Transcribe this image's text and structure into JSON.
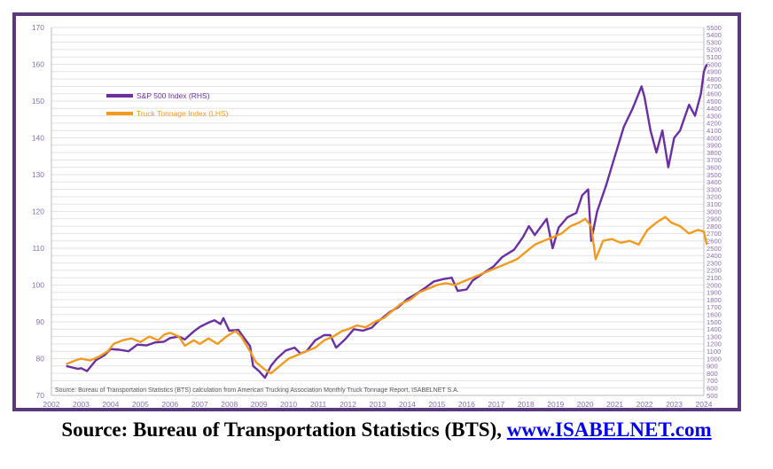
{
  "chart_data": {
    "type": "line",
    "x_ticks": [
      "2002",
      "2003",
      "2004",
      "2005",
      "2006",
      "2007",
      "2008",
      "2009",
      "2010",
      "2011",
      "2012",
      "2013",
      "2014",
      "2015",
      "2016",
      "2017",
      "2018",
      "2019",
      "2020",
      "2021",
      "2022",
      "2023",
      "2024"
    ],
    "y_left_ticks": [
      70,
      80,
      90,
      100,
      110,
      120,
      130,
      140,
      150,
      160,
      170
    ],
    "y_left_range": [
      70,
      170
    ],
    "y_right_range": [
      500,
      5500
    ],
    "y_right_step": 100,
    "x_range": [
      2002,
      2024
    ],
    "grid": true,
    "legend_position": "top-left",
    "note": "Source: Bureau of Transportation Statistics (BTS) calculation from American Trucking Association Monthly Truck Tonnage Report, ISABELNET S.A.",
    "series": [
      {
        "name": "S&P 500 Index (RHS)",
        "axis": "right",
        "color": "#6a2fa0",
        "points": [
          [
            2002.5,
            900
          ],
          [
            2002.7,
            880
          ],
          [
            2002.9,
            860
          ],
          [
            2003.0,
            870
          ],
          [
            2003.2,
            830
          ],
          [
            2003.5,
            980
          ],
          [
            2003.8,
            1050
          ],
          [
            2004.0,
            1130
          ],
          [
            2004.3,
            1120
          ],
          [
            2004.6,
            1100
          ],
          [
            2004.9,
            1190
          ],
          [
            2005.2,
            1180
          ],
          [
            2005.5,
            1220
          ],
          [
            2005.8,
            1230
          ],
          [
            2006.0,
            1280
          ],
          [
            2006.3,
            1300
          ],
          [
            2006.5,
            1260
          ],
          [
            2006.8,
            1370
          ],
          [
            2007.0,
            1430
          ],
          [
            2007.3,
            1490
          ],
          [
            2007.5,
            1520
          ],
          [
            2007.7,
            1470
          ],
          [
            2007.8,
            1550
          ],
          [
            2008.0,
            1380
          ],
          [
            2008.3,
            1390
          ],
          [
            2008.5,
            1280
          ],
          [
            2008.7,
            1170
          ],
          [
            2008.8,
            900
          ],
          [
            2009.0,
            830
          ],
          [
            2009.2,
            740
          ],
          [
            2009.4,
            900
          ],
          [
            2009.6,
            1000
          ],
          [
            2009.9,
            1110
          ],
          [
            2010.2,
            1150
          ],
          [
            2010.4,
            1070
          ],
          [
            2010.6,
            1100
          ],
          [
            2010.9,
            1250
          ],
          [
            2011.2,
            1320
          ],
          [
            2011.4,
            1320
          ],
          [
            2011.6,
            1150
          ],
          [
            2011.9,
            1260
          ],
          [
            2012.2,
            1400
          ],
          [
            2012.5,
            1380
          ],
          [
            2012.8,
            1420
          ],
          [
            2013.0,
            1500
          ],
          [
            2013.4,
            1630
          ],
          [
            2013.7,
            1700
          ],
          [
            2014.0,
            1810
          ],
          [
            2014.3,
            1880
          ],
          [
            2014.6,
            1960
          ],
          [
            2014.9,
            2050
          ],
          [
            2015.2,
            2080
          ],
          [
            2015.5,
            2100
          ],
          [
            2015.7,
            1920
          ],
          [
            2016.0,
            1940
          ],
          [
            2016.2,
            2060
          ],
          [
            2016.6,
            2170
          ],
          [
            2016.9,
            2250
          ],
          [
            2017.2,
            2380
          ],
          [
            2017.6,
            2480
          ],
          [
            2017.9,
            2650
          ],
          [
            2018.1,
            2800
          ],
          [
            2018.3,
            2680
          ],
          [
            2018.7,
            2900
          ],
          [
            2018.9,
            2500
          ],
          [
            2019.1,
            2780
          ],
          [
            2019.4,
            2920
          ],
          [
            2019.7,
            2980
          ],
          [
            2019.9,
            3220
          ],
          [
            2020.1,
            3300
          ],
          [
            2020.2,
            2600
          ],
          [
            2020.4,
            3000
          ],
          [
            2020.7,
            3350
          ],
          [
            2021.0,
            3750
          ],
          [
            2021.3,
            4150
          ],
          [
            2021.6,
            4400
          ],
          [
            2021.9,
            4700
          ],
          [
            2022.0,
            4550
          ],
          [
            2022.2,
            4100
          ],
          [
            2022.4,
            3800
          ],
          [
            2022.6,
            4100
          ],
          [
            2022.8,
            3600
          ],
          [
            2023.0,
            4000
          ],
          [
            2023.2,
            4100
          ],
          [
            2023.5,
            4450
          ],
          [
            2023.7,
            4300
          ],
          [
            2023.9,
            4600
          ],
          [
            2024.0,
            4900
          ],
          [
            2024.1,
            5000
          ]
        ]
      },
      {
        "name": "Truck Tonnage Index (LHS)",
        "axis": "left",
        "color": "#f09a20",
        "points": [
          [
            2002.5,
            78.5
          ],
          [
            2002.8,
            79.5
          ],
          [
            2003.0,
            80
          ],
          [
            2003.3,
            79.5
          ],
          [
            2003.6,
            80.5
          ],
          [
            2003.9,
            82
          ],
          [
            2004.1,
            84
          ],
          [
            2004.4,
            85
          ],
          [
            2004.7,
            85.5
          ],
          [
            2005.0,
            84.5
          ],
          [
            2005.3,
            86
          ],
          [
            2005.6,
            85
          ],
          [
            2005.8,
            86.5
          ],
          [
            2006.0,
            87
          ],
          [
            2006.3,
            86
          ],
          [
            2006.5,
            83.5
          ],
          [
            2006.8,
            85
          ],
          [
            2007.0,
            84
          ],
          [
            2007.3,
            85.5
          ],
          [
            2007.6,
            84
          ],
          [
            2007.9,
            86
          ],
          [
            2008.2,
            87.5
          ],
          [
            2008.4,
            86
          ],
          [
            2008.7,
            82
          ],
          [
            2008.9,
            79
          ],
          [
            2009.2,
            77
          ],
          [
            2009.4,
            76
          ],
          [
            2009.7,
            78
          ],
          [
            2010.0,
            80
          ],
          [
            2010.3,
            81
          ],
          [
            2010.6,
            82
          ],
          [
            2010.9,
            83
          ],
          [
            2011.2,
            85
          ],
          [
            2011.5,
            86
          ],
          [
            2011.8,
            87.5
          ],
          [
            2012.0,
            88
          ],
          [
            2012.3,
            89
          ],
          [
            2012.6,
            88.5
          ],
          [
            2012.9,
            90
          ],
          [
            2013.2,
            91
          ],
          [
            2013.5,
            93
          ],
          [
            2013.8,
            95
          ],
          [
            2014.1,
            96
          ],
          [
            2014.4,
            98
          ],
          [
            2014.7,
            99
          ],
          [
            2015.0,
            100
          ],
          [
            2015.3,
            100.5
          ],
          [
            2015.6,
            100
          ],
          [
            2015.9,
            101
          ],
          [
            2016.2,
            102
          ],
          [
            2016.5,
            103
          ],
          [
            2016.8,
            104
          ],
          [
            2017.1,
            105
          ],
          [
            2017.4,
            106
          ],
          [
            2017.7,
            107
          ],
          [
            2018.0,
            109
          ],
          [
            2018.3,
            111
          ],
          [
            2018.6,
            112
          ],
          [
            2018.9,
            113
          ],
          [
            2019.2,
            114
          ],
          [
            2019.5,
            116
          ],
          [
            2019.8,
            117
          ],
          [
            2020.0,
            118
          ],
          [
            2020.2,
            116
          ],
          [
            2020.35,
            107
          ],
          [
            2020.6,
            112
          ],
          [
            2020.9,
            112.5
          ],
          [
            2021.2,
            111.5
          ],
          [
            2021.5,
            112
          ],
          [
            2021.8,
            111
          ],
          [
            2022.1,
            115
          ],
          [
            2022.4,
            117
          ],
          [
            2022.7,
            118.5
          ],
          [
            2022.9,
            117
          ],
          [
            2023.2,
            116
          ],
          [
            2023.5,
            114
          ],
          [
            2023.8,
            115
          ],
          [
            2024.0,
            114.5
          ],
          [
            2024.1,
            111
          ]
        ]
      }
    ]
  },
  "footer": {
    "source_label": "Source: Bureau of Transportation Statistics (BTS), ",
    "link_text": "www.ISABELNET.com"
  }
}
